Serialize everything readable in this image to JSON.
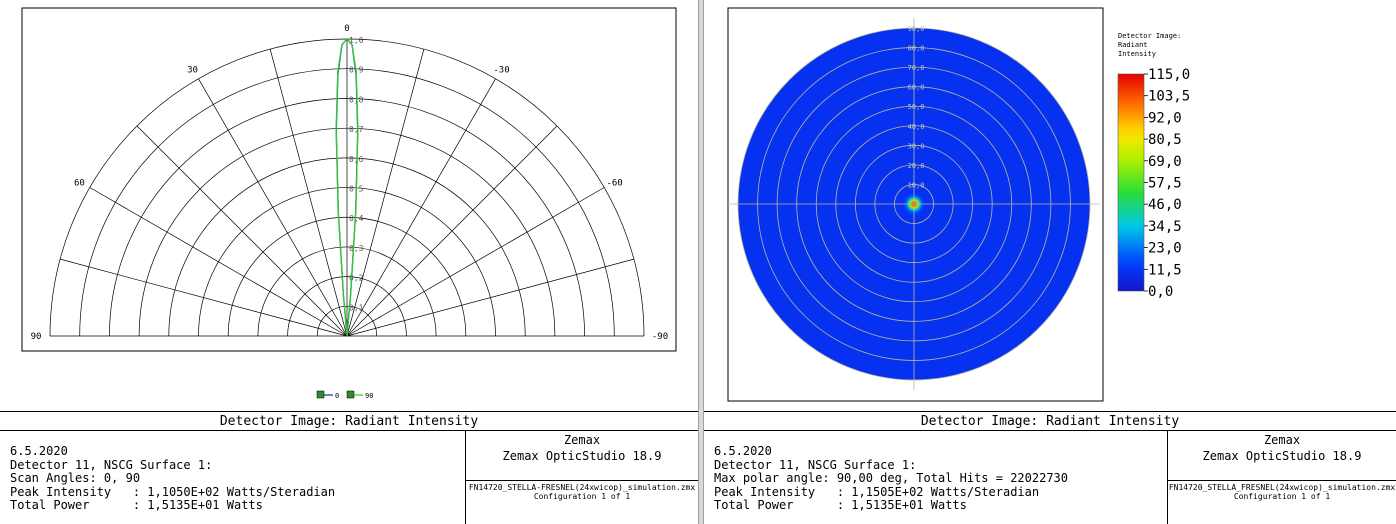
{
  "left": {
    "title": "Detector Image: Radiant Intensity",
    "info_lines": [
      "6.5.2020",
      "Detector 11, NSCG Surface 1:",
      "Scan Angles: 0, 90",
      "Peak Intensity   : 1,1050E+02 Watts/Steradian",
      "Total Power      : 1,5135E+01 Watts"
    ],
    "brand1": "Zemax",
    "brand2": "Zemax OpticStudio 18.9",
    "file": "FN14720_STELLA-FRESNEL(24xwicop)_simulation.zmx",
    "config": "Configuration 1 of 1"
  },
  "right": {
    "title": "Detector Image: Radiant Intensity",
    "info_lines": [
      "6.5.2020",
      "Detector 11, NSCG Surface 1:",
      "Max polar angle: 90,00 deg, Total Hits = 22022730",
      "Peak Intensity   : 1,1505E+02 Watts/Steradian",
      "Total Power      : 1,5135E+01 Watts"
    ],
    "brand1": "Zemax",
    "brand2": "Zemax OpticStudio 18.9",
    "file": "FN14720_STELLA_FRESNEL(24xwicop)_simulation.zmx",
    "config": "Configuration 1 of 1"
  },
  "chart_data": [
    {
      "type": "line",
      "subtype": "polar-half",
      "angle_labels": [
        "0",
        "30",
        "-30",
        "60",
        "-60",
        "90",
        "-90"
      ],
      "radial_labels": [
        "0,1",
        "0,2",
        "0,3",
        "0,4",
        "0,5",
        "0,6",
        "0,7",
        "0,8",
        "0,9",
        "1,0"
      ],
      "rlim": [
        0,
        1.0
      ],
      "legend": [
        "0",
        "90"
      ],
      "legend_position": "bottom-center",
      "grid": true,
      "series": [
        {
          "name": "0",
          "color": "#1a2aa0",
          "theta_deg": [
            -6,
            -5,
            -4,
            -3,
            -2,
            -1,
            0,
            1,
            2,
            3,
            4,
            5,
            6
          ],
          "r": [
            0.0,
            0.14,
            0.42,
            0.69,
            0.88,
            0.98,
            1.0,
            0.98,
            0.88,
            0.69,
            0.42,
            0.14,
            0.0
          ]
        },
        {
          "name": "90",
          "color": "#2ecc2e",
          "theta_deg": [
            -6,
            -5,
            -4,
            -3,
            -2,
            -1,
            0,
            1,
            2,
            3,
            4,
            5,
            6
          ],
          "r": [
            0.0,
            0.15,
            0.43,
            0.7,
            0.89,
            0.98,
            1.0,
            0.98,
            0.89,
            0.7,
            0.43,
            0.15,
            0.0
          ]
        }
      ]
    },
    {
      "type": "heatmap",
      "subtype": "polar",
      "radial_labels": [
        "10,0",
        "20,0",
        "30,0",
        "40,0",
        "50,0",
        "60,0",
        "70,0",
        "80,0",
        "90,0"
      ],
      "rlim": [
        0,
        90
      ],
      "colorbar_title": "Detector Image: Radiant Intensity",
      "colorbar_ticks": [
        "115,0",
        "103,5",
        "92,0",
        "80,5",
        "69,0",
        "57,5",
        "46,0",
        "34,5",
        "23,0",
        "11,5",
        "0,0"
      ],
      "value_range": [
        0,
        115
      ],
      "peak_value": 115,
      "peak_angle_deg": 0,
      "hotspot_falloff_deg": 4,
      "background_value": 10,
      "grid": true
    }
  ]
}
